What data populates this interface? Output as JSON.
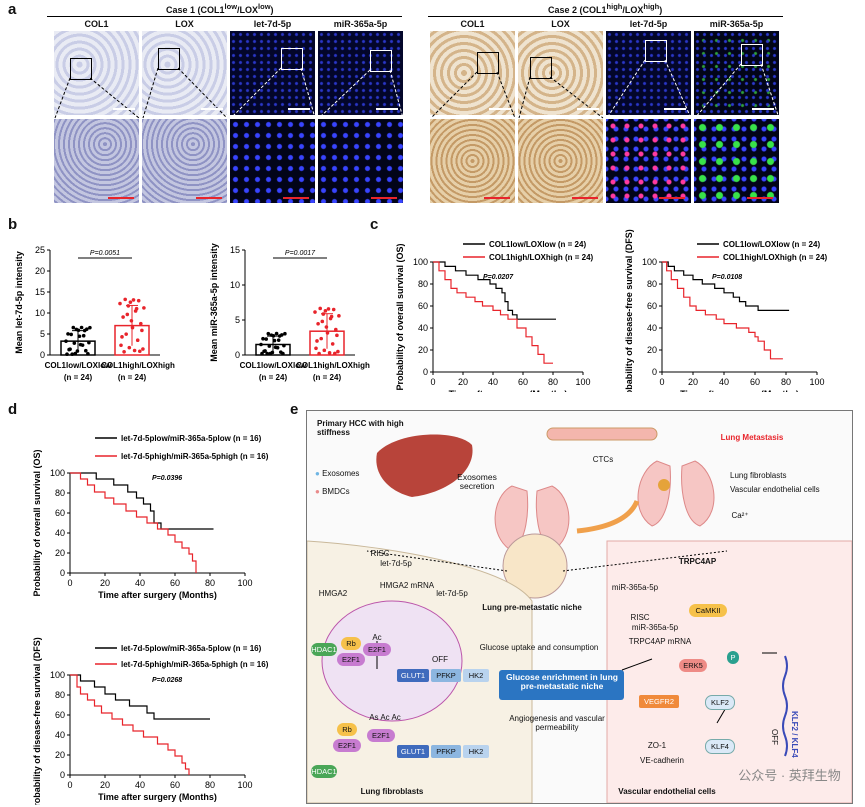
{
  "panel_a": {
    "label": "a",
    "case1": "Case 1 (COL1",
    "case1_sup1": "low",
    "case1_mid": "/LOX",
    "case1_sup2": "low",
    "case1_end": ")",
    "case2": "Case 2 (COL1",
    "case2_sup1": "high",
    "case2_mid": "/LOX",
    "case2_sup2": "high",
    "case2_end": ")",
    "columns": [
      "COL1",
      "LOX",
      "let-7d-5p",
      "miR-365a-5p",
      "COL1",
      "LOX",
      "let-7d-5p",
      "miR-365a-5p"
    ]
  },
  "panel_b": {
    "label": "b",
    "charts": [
      {
        "ylabel": "Mean let-7d-5p intensity",
        "ylim": [
          0,
          25
        ],
        "yticks": [
          "0",
          "5",
          "10",
          "15",
          "20",
          "25"
        ],
        "pvalue": "P=0.0051",
        "cat1": "COL1",
        "cat1_sup": "low",
        "cat1_mid": "/LOX",
        "cat1_sup2": "low",
        "cat2": "COL1",
        "cat2_sup": "high",
        "cat2_mid": "/LOX",
        "cat2_sup2": "high",
        "n1": "(n = 24)",
        "n2": "(n = 24)"
      },
      {
        "ylabel": "Mean miR-365a-5p intensity",
        "ylim": [
          0,
          15
        ],
        "yticks": [
          "0",
          "5",
          "10",
          "15"
        ],
        "pvalue": "P=0.0017",
        "cat1": "COL1",
        "cat1_sup": "low",
        "cat1_mid": "/LOX",
        "cat1_sup2": "low",
        "cat2": "COL1",
        "cat2_sup": "high",
        "cat2_mid": "/LOX",
        "cat2_sup2": "high",
        "n1": "(n = 24)",
        "n2": "(n = 24)"
      }
    ]
  },
  "panel_c": {
    "label": "c",
    "charts": [
      {
        "ylabel": "Probability of overall survival (OS)",
        "xlabel": "Time after surgery (Months)",
        "legend": [
          "COL1low/LOXlow (n = 24)",
          "COL1high/LOXhigh (n = 24)"
        ],
        "pvalue": "P=0.0207",
        "xticks": [
          "0",
          "20",
          "40",
          "60",
          "80",
          "100"
        ],
        "yticks": [
          "0",
          "20",
          "40",
          "60",
          "80",
          "100"
        ]
      },
      {
        "ylabel": "Probability of disease-free survival (DFS)",
        "xlabel": "Time after surgery (Months)",
        "legend": [
          "COL1low/LOXlow (n = 24)",
          "COL1high/LOXhigh (n = 24)"
        ],
        "pvalue": "P=0.0108",
        "xticks": [
          "0",
          "20",
          "40",
          "60",
          "80",
          "100"
        ],
        "yticks": [
          "0",
          "20",
          "40",
          "60",
          "80",
          "100"
        ]
      }
    ]
  },
  "panel_d": {
    "label": "d",
    "charts": [
      {
        "ylabel": "Probability of overall survival (OS)",
        "xlabel": "Time after surgery (Months)",
        "legend": [
          "let-7d-5plow/miR-365a-5plow (n = 16)",
          "let-7d-5phigh/miR-365a-5phigh (n = 16)"
        ],
        "pvalue": "P=0.0396",
        "xticks": [
          "0",
          "20",
          "40",
          "60",
          "80",
          "100"
        ],
        "yticks": [
          "0",
          "20",
          "40",
          "60",
          "80",
          "100"
        ]
      },
      {
        "ylabel": "Probability of disease-free survival (DFS)",
        "xlabel": "Time after surgery (Months)",
        "legend": [
          "let-7d-5plow/miR-365a-5plow (n = 16)",
          "let-7d-5phigh/miR-365a-5phigh (n = 16)"
        ],
        "pvalue": "P=0.0268",
        "xticks": [
          "0",
          "20",
          "40",
          "60",
          "80",
          "100"
        ],
        "yticks": [
          "0",
          "20",
          "40",
          "60",
          "80",
          "100"
        ]
      }
    ]
  },
  "panel_e": {
    "label": "e",
    "primary": "Primary HCC with high stiffness",
    "lung_meta": "Lung Metastasis",
    "ctcs": "CTCs",
    "exosomes": "Exosomes",
    "bmdcs": "BMDCs",
    "exo_secretion": "Exosomes secretion",
    "lung_fib_legend": "Lung fibroblasts",
    "vasc_legend": "Vascular endothelial cells",
    "risc1": "RISC",
    "let7": "let-7d-5p",
    "hmga2_mrna": "HMGA2 mRNA",
    "hmga2": "HMGA2",
    "let7_exo": "let-7d-5p",
    "niche": "Lung pre-metastatic niche",
    "mir365_exo": "miR-365a-5p",
    "trpc4ap": "TRPC4AP",
    "risc2": "RISC",
    "mir365": "miR-365a-5p",
    "trpc4ap_mrna": "TRPC4AP mRNA",
    "camkii": "CaMKII",
    "erk5": "ERK5",
    "klf2": "KLF2",
    "klf4": "KLF4",
    "vegfr2": "VEGFR2",
    "zo1": "ZO-1",
    "vecad": "VE-cadherin",
    "klf_off": "KLF2 / KLF4",
    "off1": "OFF",
    "off2": "OFF",
    "hdac1a": "HDAC1",
    "rb1": "Rb",
    "e2f1a": "E2F1",
    "ac": "Ac",
    "e2f1b": "E2F1",
    "rb2": "Rb",
    "e2f1c": "E2F1",
    "acs": "As  Ac  Ac",
    "e2f1d": "E2F1",
    "hdac1b": "HDAC1",
    "glut1a": "GLUT1",
    "pfkpa": "PFKP",
    "hk2a": "HK2",
    "glut1b": "GLUT1",
    "pfkpb": "PFKP",
    "hk2b": "HK2",
    "glucose_uptake": "Glucose uptake and consumption",
    "glucose_enrich": "Glucose enrichment in lung pre-metastatic niche",
    "angio": "Angiogenesis and vascular permeability",
    "lung_fib": "Lung fibroblasts",
    "vasc_endo": "Vascular endothelial cells",
    "ca": "Ca²⁺",
    "p": "P",
    "watermark": "公众号 · 英拜生物"
  },
  "colors": {
    "black_series": "#000000",
    "red_series": "#e8242b",
    "highlight_box": "#2f7cc4"
  }
}
